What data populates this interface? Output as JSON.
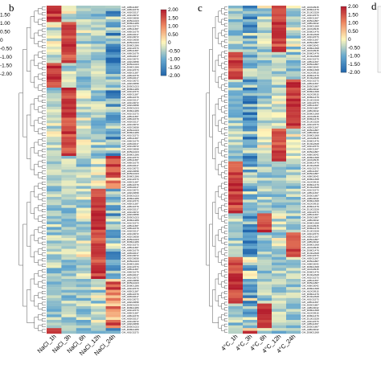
{
  "figure": {
    "panel_letters": [
      "b",
      "c",
      "d"
    ]
  },
  "colorbar": {
    "ticks": [
      "2.00",
      "1.50",
      "1.00",
      "0.50",
      "0",
      "-0.50",
      "-1.00",
      "-1.50",
      "-2.00"
    ],
    "colors": {
      "high": "#d7191c",
      "mid": "#fff7bc",
      "low": "#2c7bb6"
    }
  },
  "chart_data": [
    {
      "type": "heatmap",
      "panel": "b",
      "columns": [
        "NaCl_1h",
        "NaCl_3h",
        "NaCl_6h",
        "NaCl_12h",
        "NaCl_24h"
      ],
      "row_count": 120,
      "value_range": [
        -2.0,
        2.0
      ],
      "legend_ticks": [
        2.0,
        1.5,
        1.0,
        0.5,
        0,
        -0.5,
        -1.0,
        -1.5,
        -2.0
      ],
      "row_labels_sample": [
        "GH_A05G1387",
        "GH_A06G1679",
        "GH_A03G0217",
        "GH_A01G3072",
        "GH_A02G3658",
        "GH_D05G1023",
        "GH_D08G1286",
        "GH_A01G1573"
      ]
    },
    {
      "type": "heatmap",
      "panel": "c",
      "columns": [
        "4°C_1h",
        "4°C_3h",
        "4°C_6h",
        "4°C_12h",
        "4°C_24h"
      ],
      "row_count": 120,
      "value_range": [
        -2.0,
        2.0
      ],
      "legend_ticks": [
        2.0,
        1.5,
        1.0,
        0.5,
        0,
        -0.5,
        -1.0,
        -1.5,
        -2.0
      ],
      "row_labels_sample": [
        "GH_A10G0915",
        "GH_D08G1476",
        "GH_D13G2328",
        "GH_A01G1573",
        "GH_A05G1367",
        "GH_D05G1887",
        "GH_A08G3042",
        "GH_D08G1368"
      ]
    }
  ]
}
